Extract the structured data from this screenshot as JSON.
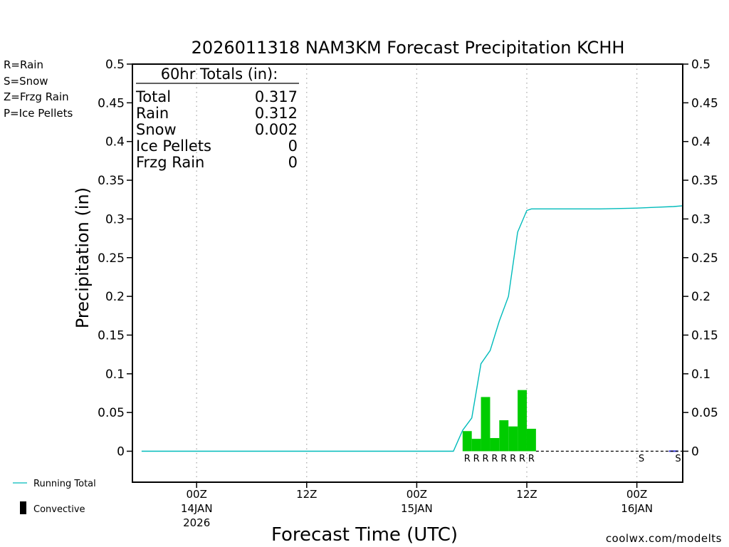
{
  "chart_data": {
    "type": "bar",
    "title": "2026011318 NAM3KM Forecast Precipitation KCHH",
    "xlabel": "Forecast Time (UTC)",
    "ylabel": "Precipitation (in)",
    "x_units": "forecast hours from 2026-01-13 18Z",
    "xlim": [
      -1,
      59
    ],
    "ylim": [
      -0.04,
      0.5
    ],
    "yticks": [
      0,
      0.05,
      0.1,
      0.15,
      0.2,
      0.25,
      0.3,
      0.35,
      0.4,
      0.45,
      0.5
    ],
    "ytick_labels": [
      "0",
      "0.05",
      "0.1",
      "0.15",
      "0.2",
      "0.25",
      "0.3",
      "0.35",
      "0.4",
      "0.45",
      "0.5"
    ],
    "xticks": [
      {
        "hour": 6,
        "line1": "00Z",
        "line2": "14JAN",
        "line3": "2026"
      },
      {
        "hour": 18,
        "line1": "12Z",
        "line2": "",
        "line3": ""
      },
      {
        "hour": 30,
        "line1": "00Z",
        "line2": "15JAN",
        "line3": ""
      },
      {
        "hour": 42,
        "line1": "12Z",
        "line2": "",
        "line3": ""
      },
      {
        "hour": 54,
        "line1": "00Z",
        "line2": "16JAN",
        "line3": ""
      }
    ],
    "bars": [
      {
        "start": 35,
        "end": 36,
        "value": 0.026,
        "type": "R"
      },
      {
        "start": 36,
        "end": 37,
        "value": 0.016,
        "type": "R"
      },
      {
        "start": 37,
        "end": 38,
        "value": 0.07,
        "type": "R"
      },
      {
        "start": 38,
        "end": 39,
        "value": 0.017,
        "type": "R"
      },
      {
        "start": 39,
        "end": 40,
        "value": 0.04,
        "type": "R"
      },
      {
        "start": 40,
        "end": 41,
        "value": 0.032,
        "type": "R"
      },
      {
        "start": 41,
        "end": 42,
        "value": 0.079,
        "type": "R"
      },
      {
        "start": 42,
        "end": 43,
        "value": 0.029,
        "type": "R"
      },
      {
        "start": 57.5,
        "end": 58.5,
        "value": 0.001,
        "type": "S"
      }
    ],
    "ptype_markers": [
      {
        "hour": 35.5,
        "letter": "R"
      },
      {
        "hour": 36.5,
        "letter": "R"
      },
      {
        "hour": 37.5,
        "letter": "R"
      },
      {
        "hour": 38.5,
        "letter": "R"
      },
      {
        "hour": 39.5,
        "letter": "R"
      },
      {
        "hour": 40.5,
        "letter": "R"
      },
      {
        "hour": 41.5,
        "letter": "R"
      },
      {
        "hour": 42.5,
        "letter": "R"
      },
      {
        "hour": 54.5,
        "letter": "S"
      },
      {
        "hour": 58.5,
        "letter": "S"
      }
    ],
    "running_total": {
      "x": [
        0,
        34,
        35,
        36,
        37,
        38,
        39,
        40,
        41,
        42,
        42.5,
        43,
        44,
        50,
        54,
        56,
        58,
        59
      ],
      "y": [
        0,
        0,
        0.027,
        0.043,
        0.113,
        0.13,
        0.168,
        0.2,
        0.283,
        0.311,
        0.313,
        0.313,
        0.313,
        0.313,
        0.314,
        0.315,
        0.316,
        0.317
      ]
    },
    "colors": {
      "rain": "#00cc00",
      "snow": "#3333dd",
      "frzg_rain": "#ff8800",
      "ice_pellets": "#ee1199",
      "running_total": "#00bbbb",
      "convective": "#000000",
      "grid": "#aaaaaa"
    }
  },
  "legend_types": [
    {
      "label": "R=Rain",
      "color": "#00cc00"
    },
    {
      "label": "S=Snow",
      "color": "#3333dd"
    },
    {
      "label": "Z=Frzg Rain",
      "color": "#ff8800"
    },
    {
      "label": "P=Ice Pellets",
      "color": "#ee1199"
    }
  ],
  "legend_bottom": {
    "running_total": "Running Total",
    "convective": "Convective"
  },
  "totals": {
    "heading": "60hr Totals (in):",
    "rows": [
      {
        "label": "Total",
        "value": "0.317"
      },
      {
        "label": "Rain",
        "value": "0.312"
      },
      {
        "label": "Snow",
        "value": "0.002"
      },
      {
        "label": "Ice Pellets",
        "value": "0"
      },
      {
        "label": "Frzg Rain",
        "value": "0"
      }
    ]
  },
  "credit": "coolwx.com/modelts"
}
